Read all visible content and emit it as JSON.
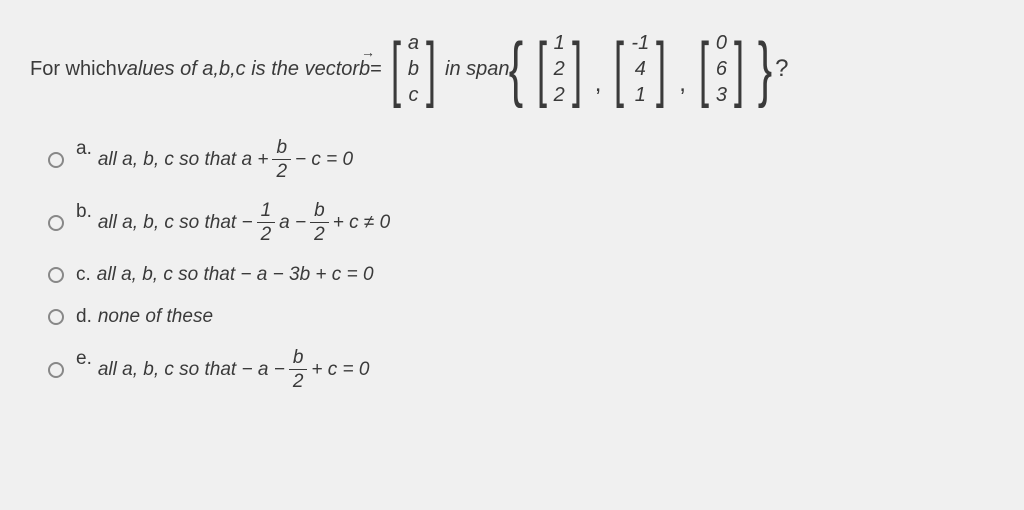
{
  "question": {
    "prefix": "For which ",
    "italic_part": "values of a,b,c is the vector ",
    "vector_symbol": "b",
    "equals": " = ",
    "in_span": " in span",
    "vec_b": {
      "r1": "a",
      "r2": "b",
      "r3": "c"
    },
    "v1": {
      "r1": "1",
      "r2": "2",
      "r3": "2"
    },
    "v2": {
      "r1": "-1",
      "r2": "4",
      "r3": "1"
    },
    "v3": {
      "r1": "0",
      "r2": "6",
      "r3": "3"
    },
    "qmark": "?"
  },
  "options": {
    "a": {
      "letter": "a.",
      "text_before": "all a, b, c so that a + ",
      "frac_num": "b",
      "frac_den": "2",
      "text_after": " − c = 0"
    },
    "b": {
      "letter": "b.",
      "text_before": "all a, b, c so that  − ",
      "frac1_num": "1",
      "frac1_den": "2",
      "mid": "a − ",
      "frac2_num": "b",
      "frac2_den": "2",
      "text_after": " + c ≠ 0"
    },
    "c": {
      "letter": "c.",
      "text": "all a, b, c so that  − a − 3b + c = 0"
    },
    "d": {
      "letter": "d.",
      "text": "none of these"
    },
    "e": {
      "letter": "e.",
      "text_before": "all a, b, c so that  − a − ",
      "frac_num": "b",
      "frac_den": "2",
      "text_after": " + c = 0"
    }
  },
  "styling": {
    "background": "#f0f0f0",
    "text_color": "#3a3a3a",
    "font_size_question": 20,
    "font_size_options": 19,
    "bracket_size": 72
  }
}
